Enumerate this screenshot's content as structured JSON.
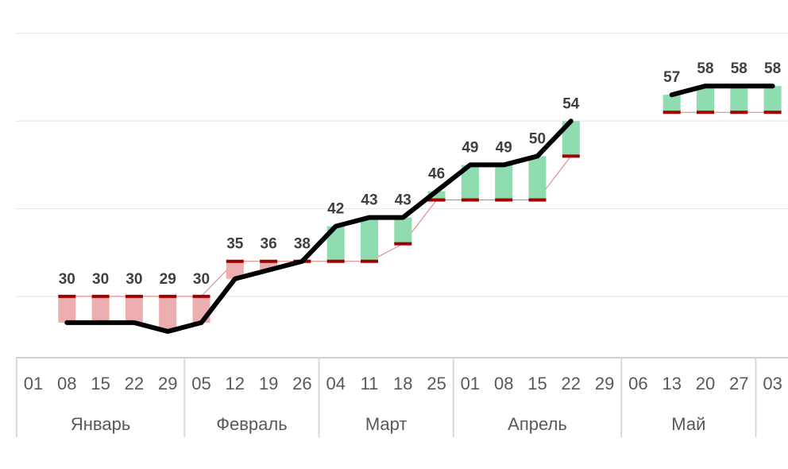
{
  "chart_data": {
    "type": "line",
    "title": "",
    "xlabel": "",
    "ylabel": "",
    "ylim": [
      23,
      62
    ],
    "grid": true,
    "colors": {
      "line": "#000000",
      "up": "#8fdcb1",
      "down": "#ecaeae",
      "marker": "#a00000",
      "connector": "#e07a7a",
      "grid": "#e6e6e6",
      "text": "#404040",
      "axis_text": "#595959"
    },
    "months": [
      {
        "name": "Январь",
        "start": 0,
        "end": 4
      },
      {
        "name": "Февраль",
        "start": 5,
        "end": 8
      },
      {
        "name": "Март",
        "start": 9,
        "end": 12
      },
      {
        "name": "Апрель",
        "start": 13,
        "end": 17
      },
      {
        "name": "Май",
        "start": 18,
        "end": 21
      },
      {
        "name": "",
        "start": 22,
        "end": 22
      }
    ],
    "points": [
      {
        "tick": "01",
        "actual": null,
        "plan": null,
        "label": ""
      },
      {
        "tick": "08",
        "actual": 27,
        "plan": 30,
        "label": "30"
      },
      {
        "tick": "15",
        "actual": 27,
        "plan": 30,
        "label": "30"
      },
      {
        "tick": "22",
        "actual": 27,
        "plan": 30,
        "label": "30"
      },
      {
        "tick": "29",
        "actual": 26,
        "plan": 30,
        "label": "29"
      },
      {
        "tick": "05",
        "actual": 27,
        "plan": 30,
        "label": "30"
      },
      {
        "tick": "12",
        "actual": 32,
        "plan": 34,
        "label": "35"
      },
      {
        "tick": "19",
        "actual": 33,
        "plan": 34,
        "label": "36"
      },
      {
        "tick": "26",
        "actual": 34,
        "plan": 34,
        "label": "38"
      },
      {
        "tick": "04",
        "actual": 38,
        "plan": 34,
        "label": "42"
      },
      {
        "tick": "11",
        "actual": 39,
        "plan": 34,
        "label": "43"
      },
      {
        "tick": "18",
        "actual": 39,
        "plan": 36,
        "label": "43"
      },
      {
        "tick": "25",
        "actual": 42,
        "plan": 41,
        "label": "46"
      },
      {
        "tick": "01",
        "actual": 45,
        "plan": 41,
        "label": "49"
      },
      {
        "tick": "08",
        "actual": 45,
        "plan": 41,
        "label": "49"
      },
      {
        "tick": "15",
        "actual": 46,
        "plan": 41,
        "label": "50"
      },
      {
        "tick": "22",
        "actual": 50,
        "plan": 46,
        "label": "54"
      },
      {
        "tick": "29",
        "actual": null,
        "plan": null,
        "label": ""
      },
      {
        "tick": "06",
        "actual": null,
        "plan": null,
        "label": ""
      },
      {
        "tick": "13",
        "actual": 53,
        "plan": 51,
        "label": "57"
      },
      {
        "tick": "20",
        "actual": 54,
        "plan": 51,
        "label": "58"
      },
      {
        "tick": "27",
        "actual": 54,
        "plan": 51,
        "label": "58"
      },
      {
        "tick": "03",
        "actual": 54,
        "plan": 51,
        "label": "58"
      }
    ]
  }
}
